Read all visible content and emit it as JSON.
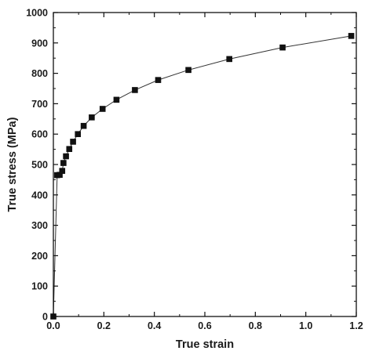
{
  "chart_data": {
    "type": "line",
    "title": "",
    "xlabel": "True strain",
    "ylabel": "True stress (MPa)",
    "xlim": [
      0,
      1.2
    ],
    "ylim": [
      0,
      1000
    ],
    "xticks": [
      0.0,
      0.2,
      0.4,
      0.6,
      0.8,
      1.0,
      1.2
    ],
    "xtick_labels": [
      "0.0",
      "0.2",
      "0.4",
      "0.6",
      "0.8",
      "1.0",
      "1.2"
    ],
    "yticks": [
      0,
      100,
      200,
      300,
      400,
      500,
      600,
      700,
      800,
      900,
      1000
    ],
    "ytick_labels": [
      "0",
      "100",
      "200",
      "300",
      "400",
      "500",
      "600",
      "700",
      "800",
      "900",
      "1000"
    ],
    "grid": false,
    "legend": "none",
    "marker": "square",
    "colors": {
      "line": "#333333",
      "marker": "#111111",
      "axis": "#111111"
    },
    "series": [
      {
        "x": [
          0.0,
          0.015,
          0.025,
          0.035,
          0.04,
          0.05,
          0.063,
          0.078,
          0.097,
          0.12,
          0.152,
          0.195,
          0.25,
          0.323,
          0.415,
          0.535,
          0.697,
          0.908,
          1.18
        ],
        "y": [
          0,
          465,
          466,
          479,
          505,
          527,
          551,
          575,
          600,
          627,
          655,
          683,
          713,
          745,
          778,
          811,
          847,
          885,
          923
        ]
      }
    ]
  }
}
